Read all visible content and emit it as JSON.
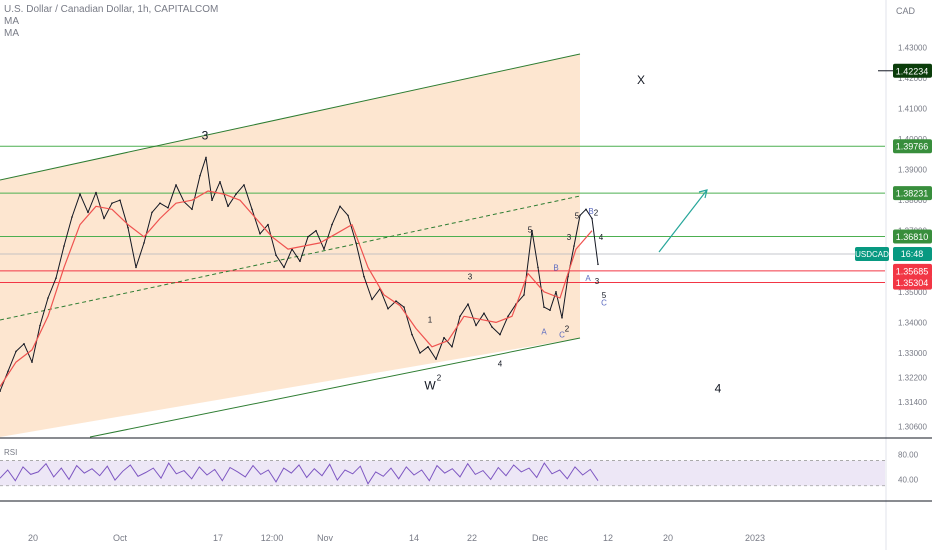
{
  "legend": {
    "symbol_line": "U.S. Dollar / Canadian Dollar, 1h, CAPITALCOM",
    "ma1": "MA",
    "ma2": "MA"
  },
  "rsi_label": "RSI",
  "chart_data": {
    "type": "line",
    "title": "U.S. Dollar / Canadian Dollar, 1h, CAPITALCOM",
    "currency": "CAD",
    "ticker": "USDCAD",
    "countdown": "16:48",
    "ylim": [
      1.3025,
      1.4455
    ],
    "y_ticks": [
      "1.43000",
      "1.42000",
      "1.41000",
      "1.40000",
      "1.39000",
      "1.38000",
      "1.37000",
      "1.35000",
      "1.34000",
      "1.33000",
      "1.32200",
      "1.31400",
      "1.30600"
    ],
    "x_ticks": [
      "20",
      "Oct",
      "17",
      "12:00",
      "Nov",
      "14",
      "22",
      "Dec",
      "12",
      "20",
      "2023"
    ],
    "price_labels": [
      {
        "value": "1.42234",
        "y": 1.42234,
        "color": "#0b3d0b"
      },
      {
        "value": "1.39766",
        "y": 1.39766,
        "color": "#388e3c"
      },
      {
        "value": "1.38231",
        "y": 1.38231,
        "color": "#388e3c"
      },
      {
        "value": "1.36810",
        "y": 1.3681,
        "color": "#388e3c"
      },
      {
        "value": "1.35685",
        "y": 1.35685,
        "color": "#f23645"
      },
      {
        "value": "1.35304",
        "y": 1.35304,
        "color": "#f23645"
      }
    ],
    "horizontal_lines": [
      {
        "y": 1.39766,
        "color": "#4caf50"
      },
      {
        "y": 1.38231,
        "color": "#4caf50"
      },
      {
        "y": 1.3681,
        "color": "#4caf50"
      },
      {
        "y": 1.35685,
        "color": "#f23645"
      },
      {
        "y": 1.35304,
        "color": "#f23645"
      }
    ],
    "series": [
      {
        "name": "USDCAD",
        "color": "#131722",
        "x": [
          0,
          8,
          16,
          24,
          32,
          40,
          48,
          56,
          64,
          72,
          80,
          88,
          96,
          104,
          112,
          120,
          128,
          136,
          144,
          152,
          160,
          168,
          176,
          184,
          192,
          200,
          206,
          212,
          220,
          228,
          236,
          244,
          252,
          260,
          268,
          276,
          284,
          292,
          300,
          308,
          316,
          324,
          332,
          340,
          348,
          356,
          364,
          372,
          380,
          388,
          396,
          404,
          412,
          420,
          428,
          436,
          444,
          452,
          460,
          468,
          476,
          484,
          492,
          500,
          508,
          516,
          524,
          532,
          538,
          544,
          550,
          556,
          562,
          568,
          574,
          580,
          586,
          592,
          598
        ],
        "y": [
          1.3175,
          1.324,
          1.3305,
          1.333,
          1.327,
          1.339,
          1.348,
          1.3545,
          1.365,
          1.3745,
          1.382,
          1.376,
          1.3825,
          1.374,
          1.379,
          1.38,
          1.371,
          1.358,
          1.366,
          1.376,
          1.379,
          1.3775,
          1.385,
          1.3795,
          1.377,
          1.388,
          1.394,
          1.38,
          1.386,
          1.378,
          1.382,
          1.385,
          1.377,
          1.369,
          1.372,
          1.362,
          1.358,
          1.364,
          1.36,
          1.368,
          1.37,
          1.364,
          1.372,
          1.378,
          1.375,
          1.366,
          1.355,
          1.3475,
          1.351,
          1.3445,
          1.347,
          1.345,
          1.336,
          1.33,
          1.332,
          1.328,
          1.335,
          1.332,
          1.342,
          1.346,
          1.339,
          1.343,
          1.3385,
          1.336,
          1.342,
          1.346,
          1.349,
          1.37,
          1.358,
          1.345,
          1.344,
          1.35,
          1.3415,
          1.355,
          1.365,
          1.375,
          1.377,
          1.374,
          1.359
        ]
      },
      {
        "name": "MA",
        "color": "#ef5350",
        "x": [
          0,
          16,
          32,
          48,
          64,
          80,
          96,
          112,
          128,
          144,
          160,
          176,
          192,
          208,
          224,
          240,
          256,
          272,
          288,
          304,
          320,
          336,
          352,
          368,
          384,
          400,
          416,
          432,
          448,
          464,
          480,
          496,
          512,
          528,
          544,
          560,
          576,
          592
        ],
        "y": [
          1.319,
          1.327,
          1.331,
          1.342,
          1.358,
          1.372,
          1.378,
          1.377,
          1.372,
          1.368,
          1.374,
          1.379,
          1.38,
          1.383,
          1.382,
          1.38,
          1.374,
          1.368,
          1.364,
          1.365,
          1.366,
          1.369,
          1.372,
          1.358,
          1.349,
          1.3455,
          1.338,
          1.332,
          1.334,
          1.342,
          1.341,
          1.34,
          1.342,
          1.356,
          1.35,
          1.348,
          1.364,
          1.37
        ]
      }
    ],
    "annotations": [
      {
        "text": "3",
        "x": 205,
        "y": 1.3998,
        "color": "#131722",
        "size": 12
      },
      {
        "text": "W",
        "x": 430,
        "y": 1.318,
        "color": "#131722",
        "size": 12
      },
      {
        "text": "X",
        "x": 641,
        "y": 1.418,
        "color": "#131722",
        "size": 12
      },
      {
        "text": "4",
        "x": 718,
        "y": 1.317,
        "color": "#131722",
        "size": 12
      },
      {
        "text": "1",
        "x": 430,
        "y": 1.34,
        "color": "#131722",
        "size": 8
      },
      {
        "text": "2",
        "x": 439,
        "y": 1.321,
        "color": "#131722",
        "size": 8
      },
      {
        "text": "3",
        "x": 470,
        "y": 1.354,
        "color": "#131722",
        "size": 8
      },
      {
        "text": "4",
        "x": 500,
        "y": 1.3255,
        "color": "#131722",
        "size": 8
      },
      {
        "text": "5",
        "x": 530,
        "y": 1.3695,
        "color": "#131722",
        "size": 8
      },
      {
        "text": "A",
        "x": 544,
        "y": 1.336,
        "color": "#5c6bc0",
        "size": 8
      },
      {
        "text": "B",
        "x": 556,
        "y": 1.357,
        "color": "#5c6bc0",
        "size": 8
      },
      {
        "text": "C",
        "x": 562,
        "y": 1.335,
        "color": "#5c6bc0",
        "size": 8
      },
      {
        "text": "2",
        "x": 567,
        "y": 1.337,
        "color": "#131722",
        "size": 8
      },
      {
        "text": "3",
        "x": 569,
        "y": 1.367,
        "color": "#131722",
        "size": 8
      },
      {
        "text": "5",
        "x": 577,
        "y": 1.374,
        "color": "#131722",
        "size": 8
      },
      {
        "text": "B",
        "x": 591,
        "y": 1.3755,
        "color": "#5c6bc0",
        "size": 8
      },
      {
        "text": "2",
        "x": 596,
        "y": 1.375,
        "color": "#131722",
        "size": 8
      },
      {
        "text": "4",
        "x": 601,
        "y": 1.367,
        "color": "#131722",
        "size": 8
      },
      {
        "text": "A",
        "x": 588,
        "y": 1.3535,
        "color": "#5c6bc0",
        "size": 8
      },
      {
        "text": "3",
        "x": 597,
        "y": 1.3525,
        "color": "#131722",
        "size": 8
      },
      {
        "text": "5",
        "x": 604,
        "y": 1.348,
        "color": "#131722",
        "size": 8
      },
      {
        "text": "C",
        "x": 604,
        "y": 1.3455,
        "color": "#5c6bc0",
        "size": 8
      }
    ],
    "rsi": {
      "y_ticks": [
        "80.00",
        "40.00"
      ],
      "upper": 70,
      "lower": 30,
      "color": "#7e57c2",
      "values": [
        42,
        55,
        38,
        60,
        48,
        52,
        65,
        44,
        58,
        40,
        62,
        50,
        57,
        46,
        61,
        39,
        53,
        63,
        45,
        51,
        58,
        42,
        66,
        49,
        54,
        41,
        60,
        47,
        56,
        38,
        59,
        52,
        44,
        62,
        48,
        55,
        36,
        58,
        50,
        63,
        43,
        57,
        46,
        64,
        39,
        55,
        49,
        61,
        33,
        52,
        45,
        58,
        41,
        60,
        47,
        55,
        38,
        62,
        50,
        57,
        44,
        65,
        48,
        54,
        40,
        59,
        46,
        63,
        52,
        58,
        43,
        66,
        49,
        55,
        41,
        60,
        47,
        56,
        38
      ]
    }
  }
}
